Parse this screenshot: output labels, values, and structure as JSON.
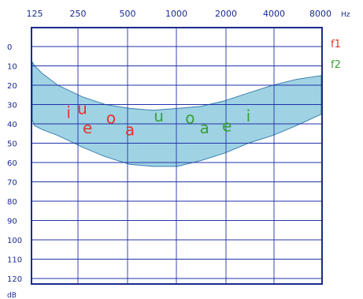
{
  "chart_data": {
    "type": "area",
    "x_ticks": [
      "125",
      "250",
      "500",
      "1000",
      "2000",
      "4000",
      "8000"
    ],
    "x_unit": "Hz",
    "y_ticks": [
      "0",
      "10",
      "20",
      "30",
      "40",
      "50",
      "60",
      "70",
      "80",
      "90",
      "100",
      "110",
      "120"
    ],
    "y_unit": "dB",
    "ylim": [
      0,
      120
    ],
    "x_scale": "log",
    "grid": true,
    "legend": [
      {
        "label": "f1",
        "color": "#e8302a"
      },
      {
        "label": "f2",
        "color": "#3aa035"
      }
    ],
    "legend_position": "top-right",
    "band": {
      "fill": "#9fd3e3",
      "freq": [
        110,
        125,
        140,
        175,
        250,
        350,
        500,
        700,
        1000,
        1400,
        2000,
        2800,
        4000,
        5600,
        9500
      ],
      "upper_db": [
        8,
        10,
        14,
        20,
        26,
        30,
        32,
        33,
        32,
        31,
        28,
        24,
        20,
        17,
        15
      ],
      "lower_db": [
        38,
        41,
        43,
        46,
        52,
        57,
        61,
        62,
        62,
        59,
        55,
        50,
        46,
        41,
        35
      ]
    },
    "phonemes": [
      {
        "label": "i",
        "freq": 205,
        "db": 34,
        "color": "#e8302a"
      },
      {
        "label": "u",
        "freq": 250,
        "db": 32,
        "color": "#e8302a"
      },
      {
        "label": "e",
        "freq": 270,
        "db": 42,
        "color": "#e8302a"
      },
      {
        "label": "o",
        "freq": 380,
        "db": 37,
        "color": "#e8302a"
      },
      {
        "label": "a",
        "freq": 500,
        "db": 43,
        "color": "#e8302a"
      },
      {
        "label": "u",
        "freq": 760,
        "db": 36,
        "color": "#3aa035"
      },
      {
        "label": "o",
        "freq": 1200,
        "db": 37,
        "color": "#3aa035"
      },
      {
        "label": "a",
        "freq": 1480,
        "db": 42,
        "color": "#3aa035"
      },
      {
        "label": "e",
        "freq": 2050,
        "db": 41,
        "color": "#3aa035"
      },
      {
        "label": "i",
        "freq": 2800,
        "db": 36,
        "color": "#3aa035"
      }
    ]
  }
}
